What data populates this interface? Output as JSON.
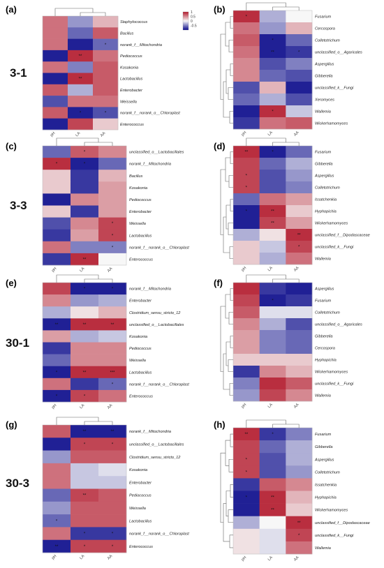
{
  "figure": {
    "group_labels": [
      "3-1",
      "3-3",
      "30-1",
      "30-3"
    ],
    "legend": {
      "ticks": [
        1,
        0.5,
        0,
        -0.5
      ],
      "colors": {
        "positive": "#b2182b",
        "neutral": "#f7f7f7",
        "negative": "#08088a"
      }
    }
  },
  "chart_data": [
    {
      "type": "heatmap",
      "panel": "(a)",
      "group": "3-1",
      "columns": [
        "pH",
        "LA",
        "AA"
      ],
      "rows": [
        "Staphylococcus",
        "Bacillus",
        "norank_f__Mitochondria",
        "Pediococcus",
        "Kosakonia",
        "Lactobacillus",
        "Enterobacter",
        "Weissella",
        "norank_f__norank_o__Chloroplast",
        "Enterococcus"
      ],
      "values": [
        [
          0.6,
          -0.4,
          0.3
        ],
        [
          0.6,
          -0.6,
          0.7
        ],
        [
          0.6,
          -0.9,
          -0.6
        ],
        [
          -0.9,
          0.9,
          0.6
        ],
        [
          0.6,
          -0.5,
          0.7
        ],
        [
          -0.9,
          0.9,
          0.7
        ],
        [
          0.7,
          -0.3,
          0.7
        ],
        [
          -0.7,
          0.6,
          0.6
        ],
        [
          0.7,
          -0.9,
          -0.7
        ],
        [
          -0.9,
          0.8,
          0.2
        ]
      ],
      "stars": [
        [
          "",
          "",
          ""
        ],
        [
          "",
          "",
          ""
        ],
        [
          "",
          "",
          "*"
        ],
        [
          "",
          "**",
          ""
        ],
        [
          "",
          "",
          ""
        ],
        [
          "",
          "**",
          ""
        ],
        [
          "",
          "",
          ""
        ],
        [
          "",
          "",
          ""
        ],
        [
          "",
          "*",
          "*"
        ],
        [
          "",
          "",
          ""
        ]
      ]
    },
    {
      "type": "heatmap",
      "panel": "(b)",
      "group": "3-1",
      "columns": [
        "pH",
        "LA",
        "AA"
      ],
      "rows": [
        "Fusarium",
        "Cercospora",
        "Colletotrichum",
        "unclassified_o__Agaricales",
        "Aspergillus",
        "Gibberella",
        "unclassified_k__Fungi",
        "Xeromyces",
        "Wallemia",
        "Wickerhamomyces"
      ],
      "values": [
        [
          0.9,
          -0.3,
          0.0
        ],
        [
          0.6,
          -0.4,
          0.3
        ],
        [
          0.7,
          -0.9,
          -0.6
        ],
        [
          0.6,
          -0.9,
          -0.8
        ],
        [
          0.5,
          -0.7,
          -0.5
        ],
        [
          0.5,
          -0.6,
          -0.7
        ],
        [
          -0.7,
          0.3,
          -0.9
        ],
        [
          -0.6,
          -0.3,
          -0.7
        ],
        [
          -0.9,
          0.9,
          -0.2
        ],
        [
          -0.8,
          0.6,
          0.7
        ]
      ],
      "stars": [
        [
          "*",
          "",
          ""
        ],
        [
          "",
          "",
          ""
        ],
        [
          "",
          "*",
          ""
        ],
        [
          "",
          "**",
          "*"
        ],
        [
          "",
          "",
          ""
        ],
        [
          "",
          "",
          ""
        ],
        [
          "",
          "",
          ""
        ],
        [
          "",
          "",
          ""
        ],
        [
          "",
          "*",
          ""
        ],
        [
          "",
          "",
          ""
        ]
      ]
    },
    {
      "type": "heatmap",
      "panel": "(c)",
      "group": "3-3",
      "columns": [
        "pH",
        "LA",
        "AA"
      ],
      "rows": [
        "unclassified_o__Lactobacillales",
        "norank_f__Mitochondria",
        "Bacillus",
        "Kosakonia",
        "Pediococcus",
        "Enterobacter",
        "Weissella",
        "Lactobacillus",
        "norank_f__norank_o__Chloroplast",
        "Enterococcus"
      ],
      "values": [
        [
          -0.6,
          0.7,
          0.5
        ],
        [
          0.9,
          -0.9,
          -0.6
        ],
        [
          0.2,
          -0.8,
          0.3
        ],
        [
          0.2,
          -0.8,
          0.4
        ],
        [
          -0.9,
          0.5,
          0.4
        ],
        [
          0.2,
          -0.8,
          0.4
        ],
        [
          -0.7,
          0.5,
          0.8
        ],
        [
          -0.8,
          0.4,
          0.8
        ],
        [
          0.6,
          -0.5,
          -0.5
        ],
        [
          -0.8,
          0.9,
          0.0
        ]
      ],
      "stars": [
        [
          "",
          "*",
          ""
        ],
        [
          "*",
          "*",
          ""
        ],
        [
          "",
          "",
          ""
        ],
        [
          "",
          "",
          ""
        ],
        [
          "",
          "",
          ""
        ],
        [
          "",
          "",
          ""
        ],
        [
          "",
          "",
          "*"
        ],
        [
          "",
          "",
          "*"
        ],
        [
          "",
          "",
          "*"
        ],
        [
          "",
          "**",
          ""
        ]
      ]
    },
    {
      "type": "heatmap",
      "panel": "(d)",
      "group": "3-3",
      "columns": [
        "pH",
        "LA",
        "AA"
      ],
      "rows": [
        "Fusarium",
        "Gibberella",
        "Aspergillus",
        "Colletotrichum",
        "Issatchenkia",
        "Hyphopichia",
        "Wickerhamomyces",
        "unclassified_f__Dipodascaceae",
        "unclassified_k__Fungi",
        "Wallemia"
      ],
      "values": [
        [
          0.9,
          -0.9,
          -0.6
        ],
        [
          0.8,
          -0.6,
          -0.3
        ],
        [
          0.8,
          -0.7,
          -0.4
        ],
        [
          0.8,
          -0.7,
          -0.5
        ],
        [
          -0.6,
          0.6,
          0.4
        ],
        [
          -0.9,
          0.9,
          0.2
        ],
        [
          -0.9,
          0.8,
          0.4
        ],
        [
          -0.3,
          0.1,
          0.9
        ],
        [
          0.2,
          -0.2,
          0.8
        ],
        [
          0.2,
          -0.3,
          0.6
        ]
      ],
      "stars": [
        [
          "**",
          "*",
          ""
        ],
        [
          "",
          "",
          ""
        ],
        [
          "*",
          "",
          ""
        ],
        [
          "*",
          "",
          ""
        ],
        [
          "",
          "",
          ""
        ],
        [
          "*",
          "**",
          ""
        ],
        [
          "",
          "**",
          ""
        ],
        [
          "",
          "",
          "**"
        ],
        [
          "",
          "",
          "*"
        ],
        [
          "",
          "",
          ""
        ]
      ]
    },
    {
      "type": "heatmap",
      "panel": "(e)",
      "group": "30-1",
      "columns": [
        "pH",
        "LA",
        "AA"
      ],
      "rows": [
        "norank_f__Mitochondria",
        "Enterobacter",
        "Clostridium_sensu_stricto_12",
        "unclassified_o__Lactobacillales",
        "Kosakonia",
        "Pediococcus",
        "Weissella",
        "Lactobacillus",
        "norank_f__norank_o__Chloroplast",
        "Enterococcus"
      ],
      "values": [
        [
          0.8,
          -0.9,
          -0.9
        ],
        [
          0.5,
          -0.4,
          -0.3
        ],
        [
          -0.3,
          0.1,
          0.3
        ],
        [
          -0.9,
          0.9,
          0.9
        ],
        [
          0.4,
          -0.3,
          -0.2
        ],
        [
          -0.8,
          0.5,
          0.5
        ],
        [
          -0.6,
          0.5,
          0.5
        ],
        [
          -0.9,
          0.9,
          0.9
        ],
        [
          0.6,
          -0.8,
          -0.6
        ],
        [
          -0.9,
          0.8,
          0.6
        ]
      ],
      "stars": [
        [
          "",
          "*",
          "*"
        ],
        [
          "",
          "",
          ""
        ],
        [
          "",
          "",
          ""
        ],
        [
          "**",
          "**",
          "**"
        ],
        [
          "",
          "",
          ""
        ],
        [
          "",
          "",
          ""
        ],
        [
          "",
          "",
          ""
        ],
        [
          "*",
          "**",
          "***"
        ],
        [
          "",
          "",
          "*"
        ],
        [
          "*",
          "*",
          ""
        ]
      ]
    },
    {
      "type": "heatmap",
      "panel": "(f)",
      "group": "30-1",
      "columns": [
        "pH",
        "LA",
        "AA"
      ],
      "rows": [
        "Aspergillus",
        "Fusarium",
        "Colletotrichum",
        "unclassified_o__Agaricales",
        "Gibberella",
        "Cercospora",
        "Hyphopichia",
        "Wickerhamomyces",
        "unclassified_k__Fungi",
        "Wallemia"
      ],
      "values": [
        [
          0.9,
          -0.8,
          -0.9
        ],
        [
          0.8,
          -0.9,
          -0.8
        ],
        [
          0.7,
          -0.1,
          -0.1
        ],
        [
          0.5,
          -0.3,
          -0.7
        ],
        [
          0.4,
          -0.5,
          -0.6
        ],
        [
          0.4,
          -0.5,
          -0.6
        ],
        [
          0.2,
          0.2,
          0.2
        ],
        [
          -0.8,
          0.5,
          0.3
        ],
        [
          -0.5,
          0.9,
          0.7
        ],
        [
          -0.4,
          0.8,
          0.5
        ]
      ],
      "stars": [
        [
          "",
          "",
          ""
        ],
        [
          "",
          "*",
          ""
        ],
        [
          "",
          "",
          ""
        ],
        [
          "",
          "",
          ""
        ],
        [
          "",
          "",
          ""
        ],
        [
          "",
          "",
          ""
        ],
        [
          "",
          "",
          ""
        ],
        [
          "",
          "",
          ""
        ],
        [
          "",
          "",
          ""
        ],
        [
          "",
          "",
          ""
        ]
      ]
    },
    {
      "type": "heatmap",
      "panel": "(g)",
      "group": "30-3",
      "columns": [
        "pH",
        "LA",
        "AA"
      ],
      "rows": [
        "norank_f__Mitochondria",
        "unclassified_o__Lactobacillales",
        "Clostridium_sensu_stricto_12",
        "Kosakonia",
        "Enterobacter",
        "Pediococcus",
        "Weissella",
        "Lactobacillus",
        "norank_f__norank_o__Chloroplast",
        "Enterococcus"
      ],
      "values": [
        [
          0.7,
          -0.9,
          -0.9
        ],
        [
          -0.9,
          0.8,
          0.8
        ],
        [
          -0.4,
          0.7,
          0.7
        ],
        [
          0.6,
          -0.2,
          -0.1
        ],
        [
          0.6,
          -0.2,
          -0.2
        ],
        [
          -0.6,
          0.8,
          0.7
        ],
        [
          -0.4,
          0.7,
          0.7
        ],
        [
          -0.6,
          0.7,
          0.7
        ],
        [
          0.6,
          -0.8,
          -0.8
        ],
        [
          -0.9,
          0.8,
          0.8
        ]
      ],
      "stars": [
        [
          "",
          "**",
          "**"
        ],
        [
          "",
          "*",
          "*"
        ],
        [
          "",
          "",
          ""
        ],
        [
          "",
          "",
          ""
        ],
        [
          "",
          "",
          ""
        ],
        [
          "",
          "**",
          ""
        ],
        [
          "",
          "",
          ""
        ],
        [
          "*",
          "",
          ""
        ],
        [
          "",
          "*",
          "*"
        ],
        [
          "**",
          "*",
          "*"
        ]
      ]
    },
    {
      "type": "heatmap",
      "panel": "(h)",
      "group": "30-3",
      "columns": [
        "pH",
        "LA",
        "AA"
      ],
      "rows": [
        "Fusarium",
        "Gibberella",
        "Aspergillus",
        "Colletotrichum",
        "Issatchenkia",
        "Hyphopichia",
        "Wickerhamomyces",
        "unclassified_f__Dipodascaceae",
        "unclassified_k__Fungi",
        "Wallemia"
      ],
      "values": [
        [
          0.9,
          -0.8,
          -0.5
        ],
        [
          0.8,
          -0.6,
          -0.3
        ],
        [
          0.8,
          -0.7,
          -0.3
        ],
        [
          0.8,
          -0.7,
          -0.4
        ],
        [
          -0.8,
          0.7,
          0.5
        ],
        [
          -0.9,
          0.9,
          0.3
        ],
        [
          -0.9,
          0.9,
          0.2
        ],
        [
          -0.3,
          0.0,
          0.9
        ],
        [
          0.1,
          -0.1,
          0.8
        ],
        [
          0.1,
          -0.1,
          0.6
        ]
      ],
      "stars": [
        [
          "**",
          "*",
          ""
        ],
        [
          "",
          "",
          ""
        ],
        [
          "*",
          "",
          ""
        ],
        [
          "*",
          "",
          ""
        ],
        [
          "",
          "",
          ""
        ],
        [
          "*",
          "**",
          ""
        ],
        [
          "",
          "**",
          ""
        ],
        [
          "",
          "",
          "**"
        ],
        [
          "",
          "",
          "*"
        ],
        [
          "",
          "",
          ""
        ]
      ]
    }
  ]
}
